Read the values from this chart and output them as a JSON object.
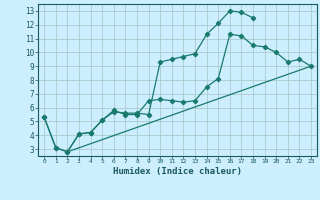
{
  "title": "",
  "xlabel": "Humidex (Indice chaleur)",
  "bg_color": "#cceeff",
  "grid_color": "#aacccc",
  "line_color": "#1a7a6e",
  "xlim": [
    -0.5,
    23.5
  ],
  "ylim": [
    2.5,
    13.5
  ],
  "xticks": [
    0,
    1,
    2,
    3,
    4,
    5,
    6,
    7,
    8,
    9,
    10,
    11,
    12,
    13,
    14,
    15,
    16,
    17,
    18,
    19,
    20,
    21,
    22,
    23
  ],
  "yticks": [
    3,
    4,
    5,
    6,
    7,
    8,
    9,
    10,
    11,
    12,
    13
  ],
  "line1_x": [
    0,
    1,
    2,
    3,
    4,
    5,
    6,
    7,
    8,
    9,
    10,
    11,
    12,
    13,
    14,
    15,
    16,
    17,
    18
  ],
  "line1_y": [
    5.3,
    3.1,
    2.8,
    4.1,
    4.2,
    5.1,
    5.7,
    5.6,
    5.6,
    5.5,
    9.3,
    9.5,
    9.7,
    9.9,
    11.3,
    12.1,
    13.0,
    12.9,
    12.5
  ],
  "line2_x": [
    0,
    1,
    2,
    3,
    4,
    5,
    6,
    7,
    8,
    9,
    10,
    11,
    12,
    13,
    14,
    15,
    16,
    17,
    18,
    19,
    20,
    21,
    22,
    23
  ],
  "line2_y": [
    5.3,
    3.1,
    2.8,
    4.1,
    4.2,
    5.1,
    5.8,
    5.5,
    5.5,
    6.5,
    6.6,
    6.5,
    6.4,
    6.5,
    7.5,
    8.1,
    11.3,
    11.2,
    10.5,
    10.4,
    10.0,
    9.3,
    9.5,
    9.0
  ],
  "line3_x": [
    2,
    23
  ],
  "line3_y": [
    2.8,
    9.0
  ]
}
